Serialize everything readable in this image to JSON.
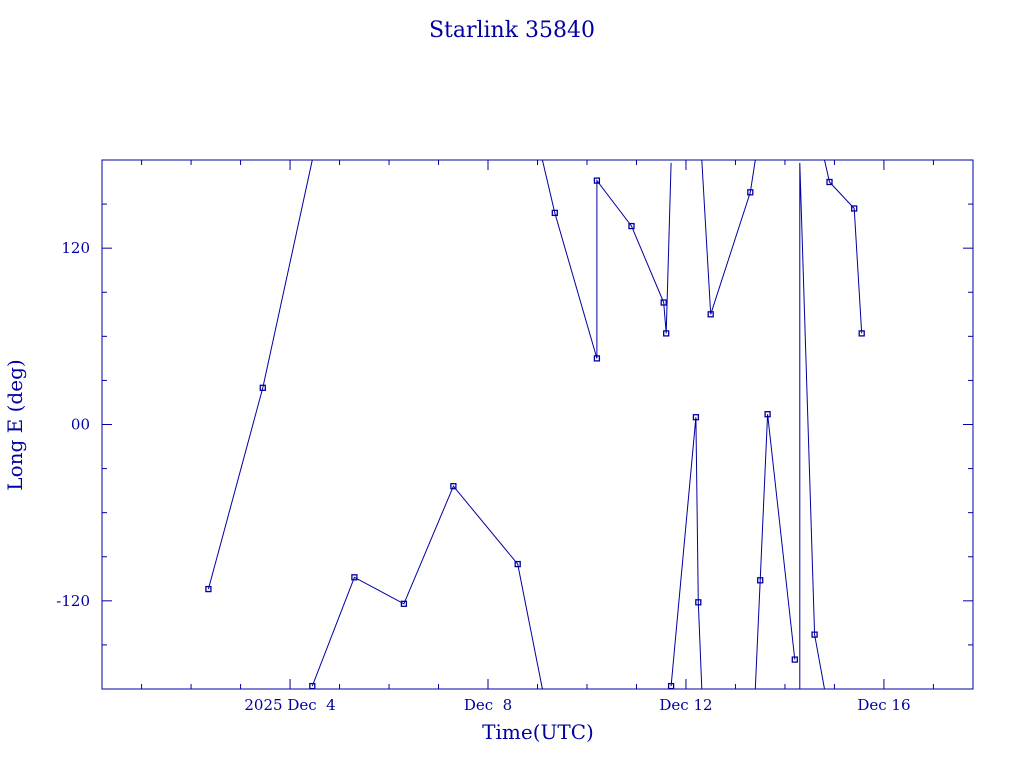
{
  "chart_data": {
    "type": "scatter",
    "title": "Starlink 35840",
    "xlabel": "Time(UTC)",
    "ylabel": "Long E (deg)",
    "x_unit": "days",
    "x_ticks": [
      {
        "x": 4,
        "label": "2025 Dec  4"
      },
      {
        "x": 8,
        "label": "Dec  8"
      },
      {
        "x": 12,
        "label": "Dec 12"
      },
      {
        "x": 16,
        "label": "Dec 16"
      }
    ],
    "y_ticks": [
      {
        "y": 120,
        "label": "120"
      },
      {
        "y": 0,
        "label": "00"
      },
      {
        "y": -120,
        "label": "-120"
      }
    ],
    "xlim": [
      0.2,
      17.8
    ],
    "ylim": [
      -180,
      180
    ],
    "grid": false,
    "line_color": "#0000a0",
    "points": [
      {
        "x": 2.35,
        "y": -112
      },
      {
        "x": 3.45,
        "y": 25
      },
      {
        "x": 4.45,
        "y": 180
      },
      {
        "x": 4.45,
        "y": -178
      },
      {
        "x": 5.3,
        "y": -104
      },
      {
        "x": 6.3,
        "y": -122
      },
      {
        "x": 7.3,
        "y": -42
      },
      {
        "x": 8.6,
        "y": -95
      },
      {
        "x": 9.1,
        "y": -180
      },
      {
        "x": 9.1,
        "y": 180
      },
      {
        "x": 9.35,
        "y": 144
      },
      {
        "x": 10.2,
        "y": 45
      },
      {
        "x": 10.2,
        "y": 166
      },
      {
        "x": 10.9,
        "y": 135
      },
      {
        "x": 11.55,
        "y": 83
      },
      {
        "x": 11.6,
        "y": 62
      },
      {
        "x": 11.7,
        "y": 178
      },
      {
        "x": 11.7,
        "y": -178
      },
      {
        "x": 12.2,
        "y": 5
      },
      {
        "x": 12.25,
        "y": -121
      },
      {
        "x": 12.32,
        "y": -180
      },
      {
        "x": 12.32,
        "y": 180
      },
      {
        "x": 12.5,
        "y": 75
      },
      {
        "x": 13.3,
        "y": 158
      },
      {
        "x": 13.4,
        "y": 180
      },
      {
        "x": 13.4,
        "y": -180
      },
      {
        "x": 13.5,
        "y": -106
      },
      {
        "x": 13.65,
        "y": 7
      },
      {
        "x": 14.2,
        "y": -160
      },
      {
        "x": 14.3,
        "y": -180
      },
      {
        "x": 14.3,
        "y": 178
      },
      {
        "x": 14.6,
        "y": -143
      },
      {
        "x": 14.8,
        "y": -180
      },
      {
        "x": 14.8,
        "y": 180
      },
      {
        "x": 14.9,
        "y": 165
      },
      {
        "x": 15.4,
        "y": 147
      },
      {
        "x": 15.55,
        "y": 62
      }
    ],
    "segments": [
      {
        "from": 0,
        "to": 2
      },
      {
        "from": 3,
        "to": 8
      },
      {
        "from": 9,
        "to": 16
      },
      {
        "from": 17,
        "to": 20
      },
      {
        "from": 21,
        "to": 24
      },
      {
        "from": 25,
        "to": 28
      },
      {
        "from": 29,
        "to": 32
      },
      {
        "from": 33,
        "to": 36
      }
    ],
    "markers": [
      0,
      1,
      3,
      4,
      5,
      6,
      7,
      10,
      11,
      12,
      13,
      14,
      15,
      17,
      18,
      19,
      22,
      23,
      26,
      27,
      28,
      31,
      34,
      35,
      36
    ]
  }
}
